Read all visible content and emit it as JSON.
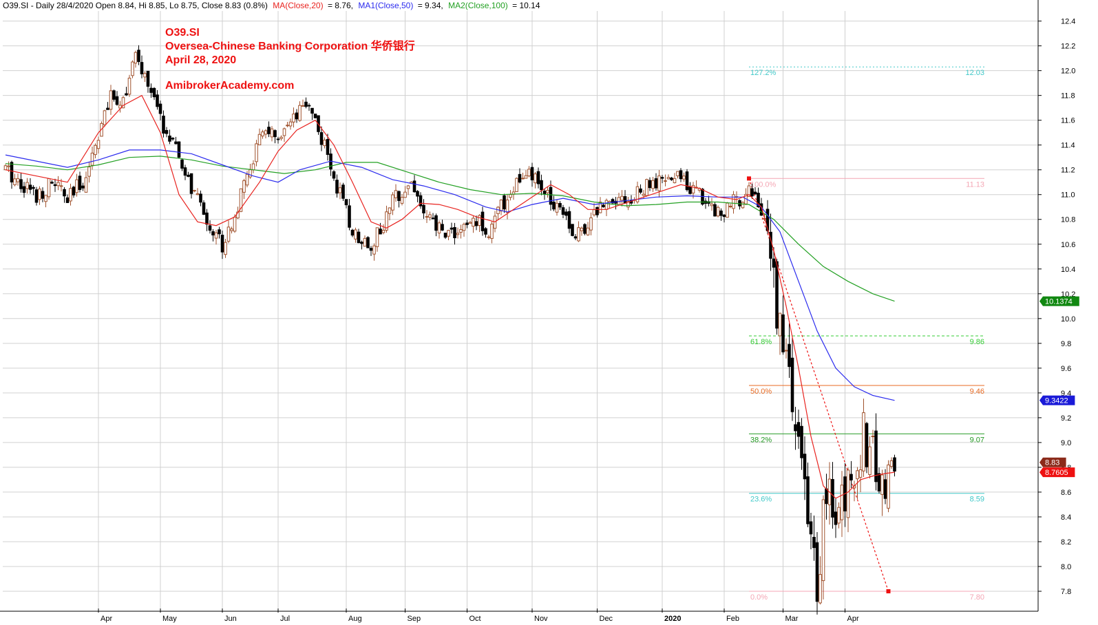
{
  "header": {
    "summary": "O39.SI - Daily 28/4/2020 Open 8.84, Hi 8.85, Lo 8.75, Close 8.83 (0.8%)",
    "ma20_label": "MA(Close,20)",
    "ma20_value": "= 8.76,",
    "ma50_label": "MA1(Close,50)",
    "ma50_value": "= 9.34,",
    "ma100_label": "MA2(Close,100)",
    "ma100_value": "= 10.14"
  },
  "annotations": {
    "ticker": "O39.SI",
    "company": "Oversea-Chinese Banking Corporation  华侨银行",
    "date": "April 28, 2020",
    "site": "AmibrokerAcademy.com"
  },
  "colors": {
    "up_candle": "#a0522d",
    "down_candle": "#000000",
    "ma20": "#e8231f",
    "ma50": "#2a2aee",
    "ma100": "#22a022",
    "grid": "#d0d0d0",
    "accent_red": "#ee1111"
  },
  "chart_data": {
    "type": "candlestick",
    "y_axis": {
      "min": 7.7,
      "max": 12.47,
      "ticks": [
        "7.8",
        "8.0",
        "8.2",
        "8.4",
        "8.6",
        "8.8",
        "9.0",
        "9.2",
        "9.4",
        "9.6",
        "9.8",
        "10.0",
        "10.2",
        "10.4",
        "10.6",
        "10.8",
        "11.0",
        "11.2",
        "11.4",
        "11.6",
        "11.8",
        "12.0",
        "12.2",
        "12.4"
      ]
    },
    "x_axis": {
      "months": [
        {
          "label": "Apr",
          "day": 30
        },
        {
          "label": "May",
          "day": 50
        },
        {
          "label": "Jun",
          "day": 70
        },
        {
          "label": "Jul",
          "day": 88
        },
        {
          "label": "Aug",
          "day": 110
        },
        {
          "label": "Sep",
          "day": 129
        },
        {
          "label": "Oct",
          "day": 149
        },
        {
          "label": "Nov",
          "day": 170
        },
        {
          "label": "Dec",
          "day": 191
        },
        {
          "label": "2020",
          "day": 212
        },
        {
          "label": "Feb",
          "day": 232
        },
        {
          "label": "Mar",
          "day": 251
        },
        {
          "label": "Apr",
          "day": 271
        }
      ],
      "total_days": 344
    },
    "closes": [
      [
        0,
        11.2
      ],
      [
        5,
        11.1
      ],
      [
        10,
        11.0
      ],
      [
        16,
        11.1
      ],
      [
        20,
        10.95
      ],
      [
        26,
        11.15
      ],
      [
        30,
        11.5
      ],
      [
        34,
        11.77
      ],
      [
        38,
        11.78
      ],
      [
        42,
        12.1
      ],
      [
        46,
        11.9
      ],
      [
        50,
        11.6
      ],
      [
        54,
        11.4
      ],
      [
        60,
        11.05
      ],
      [
        66,
        10.75
      ],
      [
        70,
        10.6
      ],
      [
        75,
        10.9
      ],
      [
        80,
        11.3
      ],
      [
        84,
        11.55
      ],
      [
        88,
        11.4
      ],
      [
        92,
        11.55
      ],
      [
        98,
        11.75
      ],
      [
        104,
        11.3
      ],
      [
        108,
        11.0
      ],
      [
        112,
        10.7
      ],
      [
        118,
        10.6
      ],
      [
        122,
        10.75
      ],
      [
        126,
        11.0
      ],
      [
        131,
        11.1
      ],
      [
        136,
        10.8
      ],
      [
        141,
        10.7
      ],
      [
        147,
        10.7
      ],
      [
        152,
        10.8
      ],
      [
        156,
        10.7
      ],
      [
        160,
        10.9
      ],
      [
        165,
        11.1
      ],
      [
        170,
        11.15
      ],
      [
        174,
        11.0
      ],
      [
        180,
        10.9
      ],
      [
        184,
        10.65
      ],
      [
        190,
        10.85
      ],
      [
        196,
        11.0
      ],
      [
        202,
        10.95
      ],
      [
        206,
        11.05
      ],
      [
        212,
        11.1
      ],
      [
        218,
        11.15
      ],
      [
        222,
        11.05
      ],
      [
        226,
        10.95
      ],
      [
        231,
        10.85
      ],
      [
        236,
        10.95
      ],
      [
        240,
        11.05
      ],
      [
        243,
        10.95
      ],
      [
        246,
        10.65
      ],
      [
        248,
        10.3
      ],
      [
        250,
        9.95
      ],
      [
        253,
        9.5
      ],
      [
        256,
        9.0
      ],
      [
        259,
        8.3
      ],
      [
        262,
        7.9
      ],
      [
        265,
        8.6
      ],
      [
        268,
        8.4
      ],
      [
        271,
        8.55
      ],
      [
        274,
        8.85
      ],
      [
        277,
        9.05
      ],
      [
        280,
        8.9
      ],
      [
        283,
        8.55
      ],
      [
        285,
        8.8
      ],
      [
        287,
        8.83
      ]
    ],
    "ma20": [
      [
        0,
        11.2
      ],
      [
        10,
        11.15
      ],
      [
        20,
        11.1
      ],
      [
        30,
        11.5
      ],
      [
        38,
        11.72
      ],
      [
        44,
        11.8
      ],
      [
        50,
        11.5
      ],
      [
        56,
        11.0
      ],
      [
        62,
        10.78
      ],
      [
        68,
        10.75
      ],
      [
        74,
        10.82
      ],
      [
        82,
        11.1
      ],
      [
        88,
        11.35
      ],
      [
        94,
        11.52
      ],
      [
        100,
        11.6
      ],
      [
        106,
        11.4
      ],
      [
        112,
        11.1
      ],
      [
        118,
        10.78
      ],
      [
        123,
        10.73
      ],
      [
        128,
        10.8
      ],
      [
        134,
        10.93
      ],
      [
        140,
        10.92
      ],
      [
        146,
        10.88
      ],
      [
        152,
        10.82
      ],
      [
        158,
        10.78
      ],
      [
        164,
        10.88
      ],
      [
        170,
        10.98
      ],
      [
        176,
        11.08
      ],
      [
        182,
        11.0
      ],
      [
        188,
        10.88
      ],
      [
        194,
        10.88
      ],
      [
        200,
        10.93
      ],
      [
        206,
        10.98
      ],
      [
        212,
        11.03
      ],
      [
        218,
        11.08
      ],
      [
        224,
        11.05
      ],
      [
        230,
        10.98
      ],
      [
        236,
        10.96
      ],
      [
        240,
        11.0
      ],
      [
        244,
        10.9
      ],
      [
        248,
        10.55
      ],
      [
        252,
        10.1
      ],
      [
        256,
        9.6
      ],
      [
        260,
        9.05
      ],
      [
        264,
        8.65
      ],
      [
        268,
        8.55
      ],
      [
        272,
        8.6
      ],
      [
        276,
        8.7
      ],
      [
        280,
        8.73
      ],
      [
        284,
        8.75
      ],
      [
        287,
        8.76
      ]
    ],
    "ma50": [
      [
        0,
        11.32
      ],
      [
        10,
        11.27
      ],
      [
        20,
        11.22
      ],
      [
        30,
        11.28
      ],
      [
        40,
        11.36
      ],
      [
        50,
        11.36
      ],
      [
        60,
        11.33
      ],
      [
        70,
        11.24
      ],
      [
        80,
        11.15
      ],
      [
        88,
        11.1
      ],
      [
        95,
        11.2
      ],
      [
        105,
        11.27
      ],
      [
        115,
        11.22
      ],
      [
        125,
        11.12
      ],
      [
        135,
        11.07
      ],
      [
        145,
        11.0
      ],
      [
        155,
        10.9
      ],
      [
        162,
        10.86
      ],
      [
        170,
        10.92
      ],
      [
        180,
        10.97
      ],
      [
        190,
        10.92
      ],
      [
        200,
        10.95
      ],
      [
        210,
        10.98
      ],
      [
        220,
        10.99
      ],
      [
        230,
        10.98
      ],
      [
        238,
        10.98
      ],
      [
        244,
        10.9
      ],
      [
        250,
        10.7
      ],
      [
        256,
        10.3
      ],
      [
        262,
        9.9
      ],
      [
        268,
        9.6
      ],
      [
        274,
        9.45
      ],
      [
        280,
        9.38
      ],
      [
        287,
        9.34
      ]
    ],
    "ma100": [
      [
        0,
        11.25
      ],
      [
        10,
        11.23
      ],
      [
        20,
        11.2
      ],
      [
        30,
        11.24
      ],
      [
        40,
        11.3
      ],
      [
        50,
        11.31
      ],
      [
        60,
        11.28
      ],
      [
        70,
        11.23
      ],
      [
        80,
        11.2
      ],
      [
        90,
        11.17
      ],
      [
        100,
        11.2
      ],
      [
        110,
        11.26
      ],
      [
        120,
        11.26
      ],
      [
        130,
        11.18
      ],
      [
        140,
        11.1
      ],
      [
        150,
        11.04
      ],
      [
        160,
        11.0
      ],
      [
        170,
        11.01
      ],
      [
        180,
        10.99
      ],
      [
        190,
        10.94
      ],
      [
        200,
        10.91
      ],
      [
        210,
        10.92
      ],
      [
        220,
        10.94
      ],
      [
        230,
        10.94
      ],
      [
        240,
        10.92
      ],
      [
        248,
        10.8
      ],
      [
        256,
        10.6
      ],
      [
        264,
        10.42
      ],
      [
        272,
        10.3
      ],
      [
        280,
        10.2
      ],
      [
        287,
        10.14
      ]
    ],
    "fib_start": [
      240,
      11.13
    ],
    "fib_end": [
      285,
      7.8
    ],
    "fib_right_day": 316,
    "fib_levels": [
      {
        "pct": "127.2%",
        "value": "12.03",
        "price": 12.03,
        "color": "#40c8c8",
        "style": "dotted"
      },
      {
        "pct": "100.0%",
        "value": "11.13",
        "price": 11.13,
        "color": "#f4a6b4",
        "style": "solid"
      },
      {
        "pct": "61.8%",
        "value": "9.86",
        "price": 9.86,
        "color": "#33cc33",
        "style": "dashed"
      },
      {
        "pct": "50.0%",
        "value": "9.46",
        "price": 9.46,
        "color": "#e86a22",
        "style": "solid"
      },
      {
        "pct": "38.2%",
        "value": "9.07",
        "price": 9.07,
        "color": "#229922",
        "style": "solid"
      },
      {
        "pct": "23.6%",
        "value": "8.59",
        "price": 8.59,
        "color": "#40c8c8",
        "style": "solid"
      },
      {
        "pct": "0.0%",
        "value": "7.80",
        "price": 7.8,
        "color": "#f4a6b4",
        "style": "solid"
      }
    ],
    "price_tags": [
      {
        "text": "10.1374",
        "price": 10.14,
        "bg": "#118811"
      },
      {
        "text": "9.3422",
        "price": 9.34,
        "bg": "#1a1ad8"
      },
      {
        "text": "8.83",
        "price": 8.84,
        "bg": "#8b2a1a"
      },
      {
        "text": "8.7605",
        "price": 8.76,
        "bg": "#ee1111"
      }
    ]
  }
}
